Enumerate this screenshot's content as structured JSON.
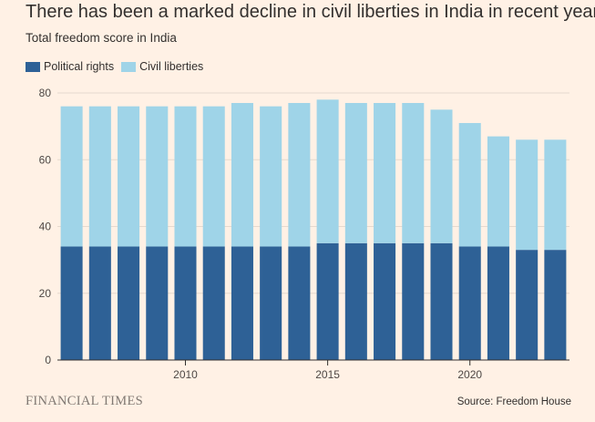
{
  "header": {
    "title": "There has been a marked decline in civil liberties in India in recent years",
    "subtitle": "Total freedom score in India"
  },
  "legend": [
    {
      "label": "Political rights",
      "color": "#2e6196"
    },
    {
      "label": "Civil liberties",
      "color": "#9fd4e8"
    }
  ],
  "footer": {
    "brand": "FINANCIAL TIMES",
    "source": "Source: Freedom House"
  },
  "chart_data": {
    "type": "bar",
    "stacked": true,
    "x": [
      2006,
      2007,
      2008,
      2009,
      2010,
      2011,
      2012,
      2013,
      2014,
      2015,
      2016,
      2017,
      2018,
      2019,
      2020,
      2021,
      2022,
      2023
    ],
    "series": [
      {
        "name": "Political rights",
        "color": "#2e6196",
        "values": [
          34,
          34,
          34,
          34,
          34,
          34,
          34,
          34,
          34,
          35,
          35,
          35,
          35,
          35,
          34,
          34,
          33,
          33
        ]
      },
      {
        "name": "Civil liberties",
        "color": "#9fd4e8",
        "values": [
          42,
          42,
          42,
          42,
          42,
          42,
          43,
          42,
          43,
          43,
          42,
          42,
          42,
          40,
          37,
          33,
          33,
          33
        ]
      }
    ],
    "title": "There has been a marked decline in civil liberties in India in recent years",
    "subtitle": "Total freedom score in India",
    "ylim": [
      0,
      80
    ],
    "yticks": [
      0,
      20,
      40,
      60,
      80
    ],
    "xticks": [
      2010,
      2015,
      2020
    ],
    "grid": true,
    "legend_position": "top-left"
  }
}
